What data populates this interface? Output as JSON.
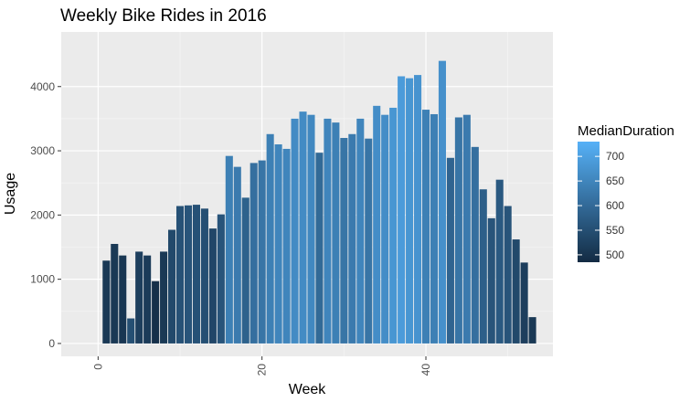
{
  "chart_data": {
    "type": "bar",
    "title": "Weekly Bike Rides in 2016",
    "xlabel": "Week",
    "ylabel": "Usage",
    "xlim": [
      -4.5,
      55.5
    ],
    "ylim": [
      -200,
      4850
    ],
    "x_ticks": [
      0,
      20,
      40
    ],
    "y_ticks": [
      0,
      1000,
      2000,
      3000,
      4000
    ],
    "grid": true,
    "legend": {
      "title": "MedianDuration",
      "placement": "right",
      "labels": [
        700,
        650,
        600,
        550,
        500
      ],
      "range": [
        485,
        730
      ],
      "color_low": "#132b43",
      "color_high": "#56b1f7"
    },
    "series": [
      {
        "weeks": [
          1,
          2,
          3,
          4,
          5,
          6,
          7,
          8,
          9,
          10,
          11,
          12,
          13,
          14,
          15,
          16,
          17,
          18,
          19,
          20,
          21,
          22,
          23,
          24,
          25,
          26,
          27,
          28,
          29,
          30,
          31,
          32,
          33,
          34,
          35,
          36,
          37,
          38,
          39,
          40,
          41,
          42,
          43,
          44,
          45,
          46,
          47,
          48,
          49,
          50,
          51,
          52,
          53
        ],
        "usage": [
          1290,
          1550,
          1370,
          390,
          1430,
          1370,
          970,
          1430,
          1770,
          2140,
          2150,
          2160,
          2100,
          1790,
          2010,
          2920,
          2750,
          2270,
          2810,
          2850,
          3260,
          3100,
          3030,
          3500,
          3610,
          3560,
          2970,
          3500,
          3440,
          3200,
          3260,
          3500,
          3190,
          3700,
          3560,
          3670,
          4160,
          4130,
          4180,
          3640,
          3570,
          4400,
          2890,
          3520,
          3560,
          3060,
          2400,
          1950,
          2550,
          2140,
          1620,
          1260,
          410
        ],
        "median_duration": [
          510,
          510,
          505,
          550,
          520,
          515,
          495,
          510,
          540,
          555,
          560,
          555,
          550,
          535,
          560,
          640,
          630,
          585,
          610,
          620,
          640,
          650,
          650,
          660,
          660,
          655,
          600,
          650,
          640,
          620,
          630,
          650,
          620,
          665,
          665,
          680,
          690,
          680,
          675,
          640,
          640,
          670,
          590,
          620,
          630,
          610,
          580,
          560,
          570,
          560,
          540,
          520,
          510
        ]
      }
    ]
  }
}
